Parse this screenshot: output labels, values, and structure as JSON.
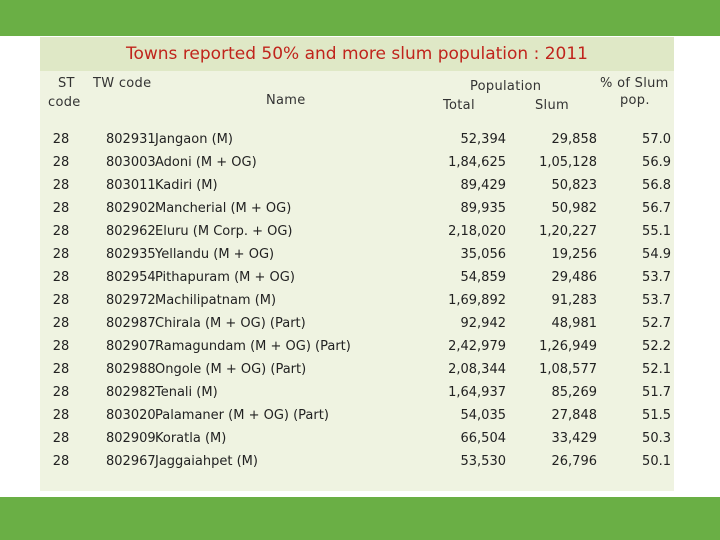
{
  "title": "Towns reported 50% and more slum population : 2011",
  "headers": {
    "st_line1": "ST",
    "st_line2": "code",
    "tw": "TW code",
    "name": "Name",
    "population": "Population",
    "total": "Total",
    "slum": "Slum",
    "pct_line1": "% of Slum",
    "pct_line2": "pop."
  },
  "rows": [
    {
      "st": "28",
      "tw": "802931",
      "name": "Jangaon (M)",
      "total": "52,394",
      "slum": "29,858",
      "pct": "57.0"
    },
    {
      "st": "28",
      "tw": "803003",
      "name": "Adoni (M + OG)",
      "total": "1,84,625",
      "slum": "1,05,128",
      "pct": "56.9"
    },
    {
      "st": "28",
      "tw": "803011",
      "name": "Kadiri (M)",
      "total": "89,429",
      "slum": "50,823",
      "pct": "56.8"
    },
    {
      "st": "28",
      "tw": "802902",
      "name": "Mancherial (M + OG)",
      "total": "89,935",
      "slum": "50,982",
      "pct": "56.7"
    },
    {
      "st": "28",
      "tw": "802962",
      "name": "Eluru (M Corp. + OG)",
      "total": "2,18,020",
      "slum": "1,20,227",
      "pct": "55.1"
    },
    {
      "st": "28",
      "tw": "802935",
      "name": "Yellandu (M + OG)",
      "total": "35,056",
      "slum": "19,256",
      "pct": "54.9"
    },
    {
      "st": "28",
      "tw": "802954",
      "name": "Pithapuram (M + OG)",
      "total": "54,859",
      "slum": "29,486",
      "pct": "53.7"
    },
    {
      "st": "28",
      "tw": "802972",
      "name": "Machilipatnam (M)",
      "total": "1,69,892",
      "slum": "91,283",
      "pct": "53.7"
    },
    {
      "st": "28",
      "tw": "802987",
      "name": "Chirala (M + OG) (Part)",
      "total": "92,942",
      "slum": "48,981",
      "pct": "52.7"
    },
    {
      "st": "28",
      "tw": "802907",
      "name": "Ramagundam (M + OG) (Part)",
      "total": "2,42,979",
      "slum": "1,26,949",
      "pct": "52.2"
    },
    {
      "st": "28",
      "tw": "802988",
      "name": "Ongole (M + OG) (Part)",
      "total": "2,08,344",
      "slum": "1,08,577",
      "pct": "52.1"
    },
    {
      "st": "28",
      "tw": "802982",
      "name": "Tenali (M)",
      "total": "1,64,937",
      "slum": "85,269",
      "pct": "51.7"
    },
    {
      "st": "28",
      "tw": "803020",
      "name": "Palamaner (M + OG) (Part)",
      "total": "54,035",
      "slum": "27,848",
      "pct": "51.5"
    },
    {
      "st": "28",
      "tw": "802909",
      "name": "Koratla (M)",
      "total": "66,504",
      "slum": "33,429",
      "pct": "50.3"
    },
    {
      "st": "28",
      "tw": "802967",
      "name": "Jaggaiahpet (M)",
      "total": "53,530",
      "slum": "26,796",
      "pct": "50.1"
    }
  ]
}
